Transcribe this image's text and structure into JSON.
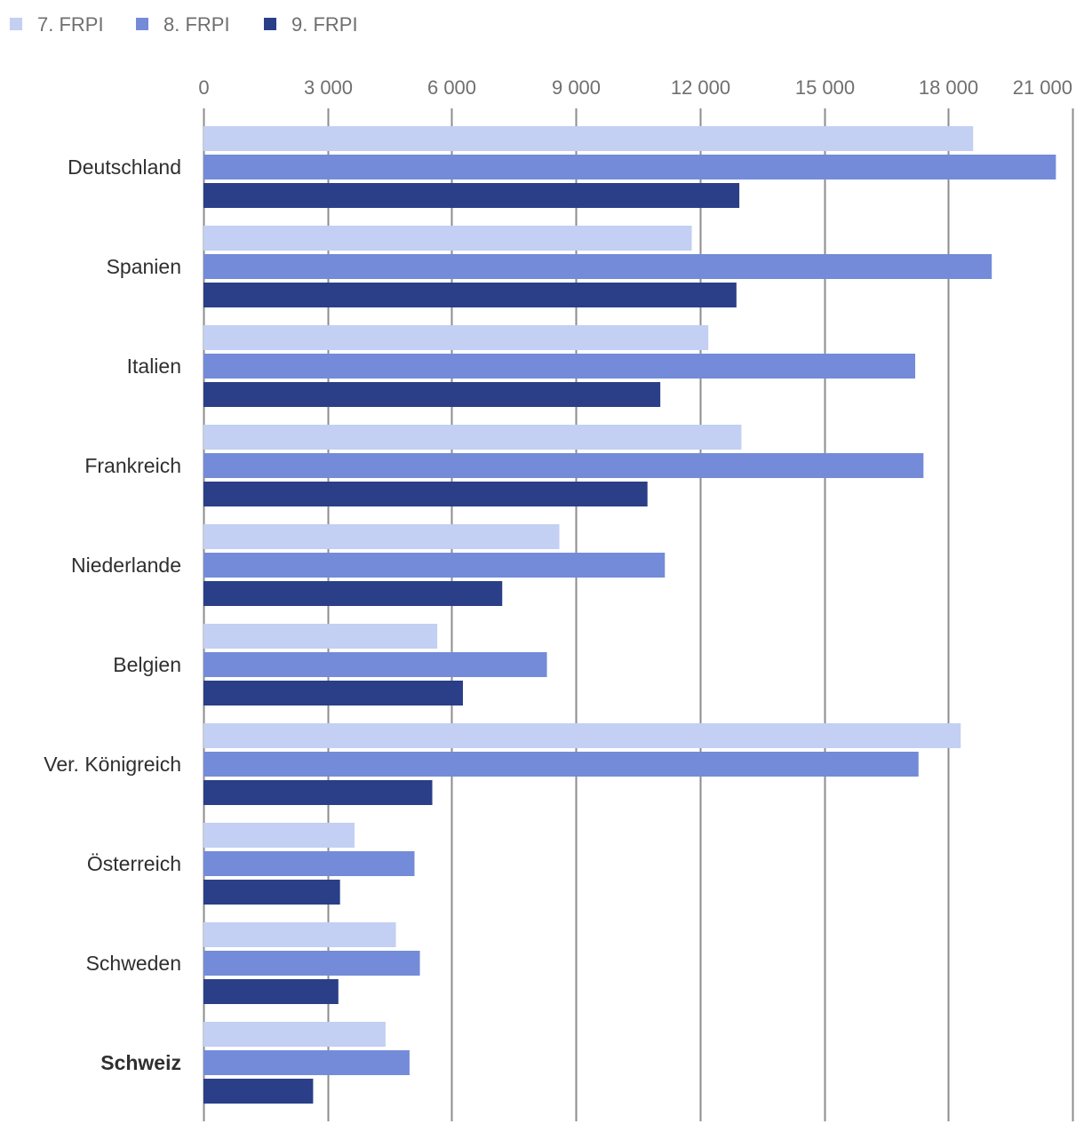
{
  "chart_data": {
    "type": "bar",
    "orientation": "horizontal",
    "title": "",
    "xlabel": "",
    "ylabel": "",
    "xlim": [
      0,
      21000
    ],
    "ticks": [
      0,
      3000,
      6000,
      9000,
      12000,
      15000,
      18000,
      21000
    ],
    "tick_labels": [
      "0",
      "3 000",
      "6 000",
      "9 000",
      "12 000",
      "15 000",
      "18 000",
      "21 000"
    ],
    "grid": true,
    "legend_position": "top-left",
    "categories": [
      "Deutschland",
      "Spanien",
      "Italien",
      "Frankreich",
      "Niederlande",
      "Belgien",
      "Ver. Königreich",
      "Österreich",
      "Schweden",
      "Schweiz"
    ],
    "highlight_category": "Schweiz",
    "series": [
      {
        "name": "7. FRPI",
        "color": "#c3cff3",
        "values": [
          18600,
          11800,
          12200,
          13000,
          8600,
          5650,
          18300,
          3650,
          4650,
          4400
        ]
      },
      {
        "name": "8. FRPI",
        "color": "#738bd8",
        "values": [
          20600,
          19050,
          17200,
          17400,
          11150,
          8300,
          17280,
          5100,
          5230,
          4980
        ]
      },
      {
        "name": "9. FRPI",
        "color": "#2a3f88",
        "values": [
          12950,
          12880,
          11040,
          10730,
          7220,
          6270,
          5530,
          3300,
          3260,
          2650
        ]
      }
    ]
  }
}
